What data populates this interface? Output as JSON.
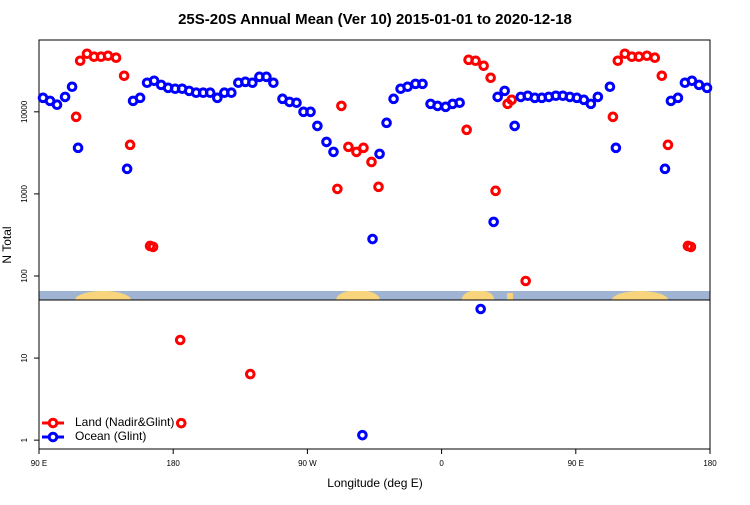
{
  "chart_data": {
    "type": "scatter",
    "title": "25S-20S Annual Mean (Ver 10)   2015-01-01 to 2020-12-18",
    "x_label": "Longitude (deg E)",
    "y_label": "N Total",
    "xlim": [
      90,
      540
    ],
    "xticks": [
      {
        "value": 90,
        "label": "90 E"
      },
      180,
      {
        "value": 270,
        "label": "90 W"
      },
      {
        "value": 360,
        "label": "0"
      },
      {
        "value": 450,
        "label": "90 E"
      },
      {
        "value": 540,
        "label": "180"
      }
    ],
    "ylim": [
      0.78,
      75000
    ],
    "ylog": true,
    "yticks": [
      1,
      10,
      100,
      1000,
      10000
    ],
    "legend": "bottom-left",
    "series": [
      {
        "name": "Land (Nadir&Glint)",
        "color": "#ff0000",
        "x": [
          114.9,
          117.6,
          122.2,
          126.9,
          131.6,
          136.3,
          141.7,
          147.1,
          151.1,
          164.5,
          166.5,
          184.7,
          231.7,
          185.4,
          290.1,
          292.8,
          297.5,
          302.9,
          307.6,
          313.0,
          317.7,
          376.8,
          378.1,
          382.8,
          388.2,
          392.9,
          396.2,
          404.3,
          407.0,
          416.4,
          474.9,
          478.2,
          482.9,
          487.6,
          492.3,
          497.7,
          503.0,
          507.7,
          511.8,
          525.2,
          527.2
        ],
        "values": [
          8690,
          41900,
          51000,
          46900,
          46900,
          48200,
          45600,
          27500,
          3960,
          232,
          226,
          16.6,
          6.38,
          1.61,
          1150,
          11800,
          3740,
          3250,
          3640,
          2450,
          1220,
          6030,
          43000,
          41900,
          36400,
          26000,
          1090,
          12500,
          14000,
          86.9,
          8690,
          41900,
          51000,
          46900,
          46900,
          48200,
          45600,
          27500,
          3960,
          232,
          226
        ]
      },
      {
        "name": "Ocean (Glint)",
        "color": "#0000ff",
        "x": [
          92.7,
          97.4,
          102.1,
          107.5,
          112.2,
          116.2,
          149.1,
          153.1,
          157.8,
          162.5,
          167.2,
          171.9,
          176.6,
          181.3,
          186.0,
          190.7,
          195.4,
          200.1,
          204.8,
          209.6,
          214.3,
          219.0,
          223.7,
          228.4,
          233.1,
          237.8,
          242.5,
          247.2,
          253.3,
          258.0,
          262.7,
          267.4,
          272.1,
          276.7,
          282.8,
          287.5,
          306.9,
          313.7,
          318.4,
          323.1,
          327.8,
          332.5,
          337.2,
          342.5,
          347.2,
          352.6,
          357.3,
          362.7,
          367.4,
          372.1,
          386.2,
          394.9,
          397.6,
          402.3,
          409.0,
          413.1,
          417.8,
          422.5,
          427.2,
          431.9,
          436.6,
          441.3,
          446.0,
          450.7,
          455.4,
          460.1,
          464.8,
          472.9,
          476.9,
          509.8,
          513.8,
          518.5,
          523.2,
          527.9,
          532.6,
          538.0
        ],
        "values": [
          14800,
          13600,
          12200,
          15200,
          20200,
          3640,
          2020,
          13600,
          14800,
          22600,
          23900,
          21300,
          19600,
          19100,
          19100,
          18000,
          17100,
          17100,
          17100,
          14800,
          17100,
          17100,
          22600,
          23200,
          22600,
          26700,
          26700,
          22600,
          14400,
          13200,
          12900,
          10000,
          10000,
          6740,
          4300,
          3250,
          1.15,
          282,
          3070,
          7340,
          14400,
          19100,
          20200,
          21900,
          21900,
          12500,
          11800,
          11500,
          12500,
          12900,
          39.6,
          456,
          15200,
          18000,
          6740,
          15200,
          15700,
          14800,
          14800,
          15200,
          15700,
          15700,
          15200,
          14800,
          14000,
          12500,
          15200,
          20200,
          3640,
          2020,
          13600,
          14800,
          22600,
          23900,
          21300,
          19600
        ]
      }
    ]
  }
}
